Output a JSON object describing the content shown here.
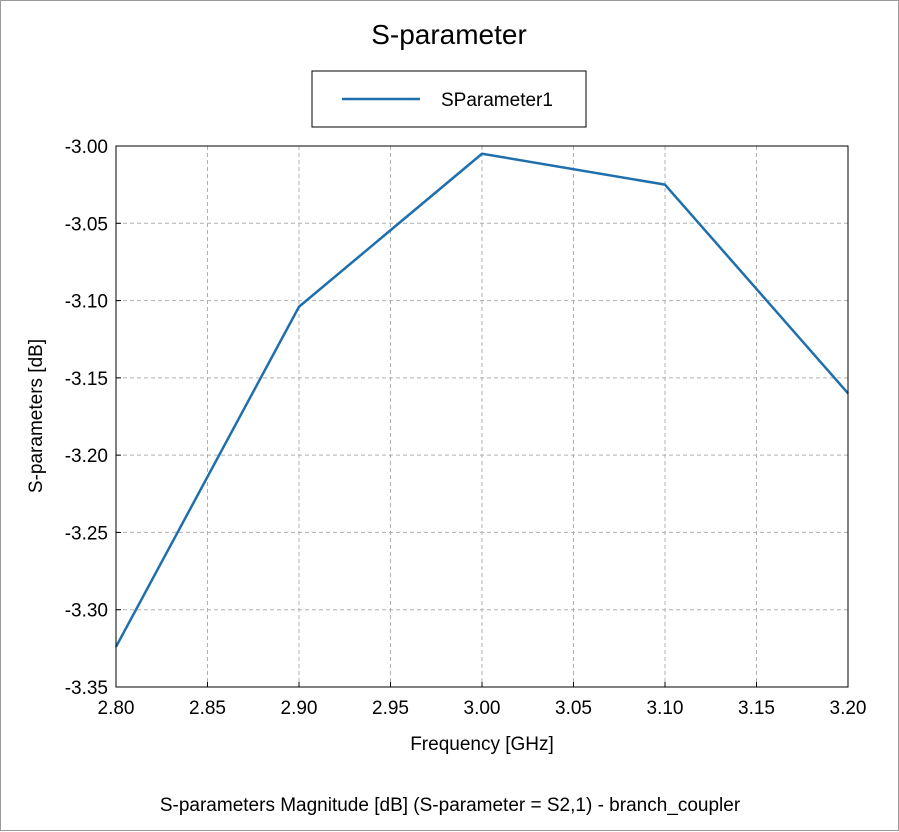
{
  "chart_data": {
    "type": "line",
    "title": "S-parameter",
    "xlabel": "Frequency [GHz]",
    "ylabel": "S-parameters [dB]",
    "caption": "S-parameters Magnitude [dB] (S-parameter = S2,1) - branch_coupler",
    "xlim": [
      2.8,
      3.2
    ],
    "ylim": [
      -3.35,
      -3.0
    ],
    "x_ticks": [
      "2.80",
      "2.85",
      "2.90",
      "2.95",
      "3.00",
      "3.05",
      "3.10",
      "3.15",
      "3.20"
    ],
    "y_ticks": [
      "-3.00",
      "-3.05",
      "-3.10",
      "-3.15",
      "-3.20",
      "-3.25",
      "-3.30",
      "-3.35"
    ],
    "grid": true,
    "legend_position": "top-center",
    "series": [
      {
        "name": "SParameter1",
        "color": "#1f6fad",
        "x": [
          2.8,
          2.9,
          3.0,
          3.1,
          3.2
        ],
        "y": [
          -3.324,
          -3.104,
          -3.005,
          -3.025,
          -3.16
        ]
      }
    ]
  }
}
